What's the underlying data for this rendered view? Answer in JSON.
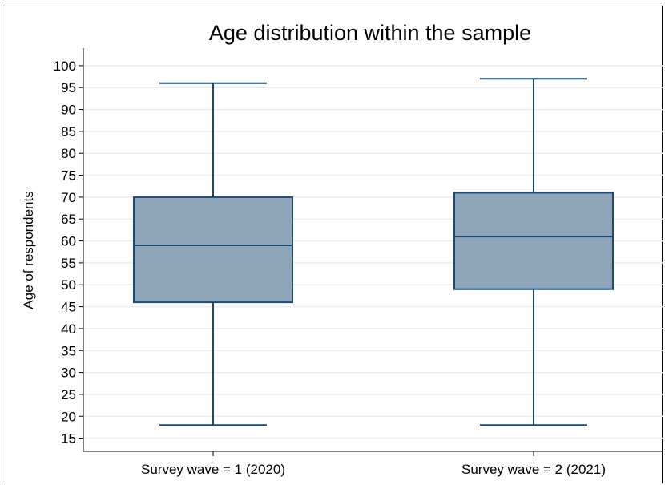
{
  "chart_data": {
    "type": "box",
    "title": "Age distribution within the sample",
    "xlabel": "",
    "ylabel": "Age of respondents",
    "ylim": [
      12,
      104
    ],
    "yticks": [
      15,
      20,
      25,
      30,
      35,
      40,
      45,
      50,
      55,
      60,
      65,
      70,
      75,
      80,
      85,
      90,
      95,
      100
    ],
    "grid": true,
    "categories": [
      "Survey wave = 1 (2020)",
      "Survey wave = 2 (2021)"
    ],
    "boxes": [
      {
        "min": 18,
        "q1": 46,
        "median": 59,
        "q3": 70,
        "max": 96
      },
      {
        "min": 18,
        "q1": 49,
        "median": 61,
        "q3": 71,
        "max": 97
      }
    ],
    "colors": {
      "box_fill": "#8fa5ba",
      "box_stroke": "#1c4a72",
      "grid": "#e8eef2"
    }
  }
}
